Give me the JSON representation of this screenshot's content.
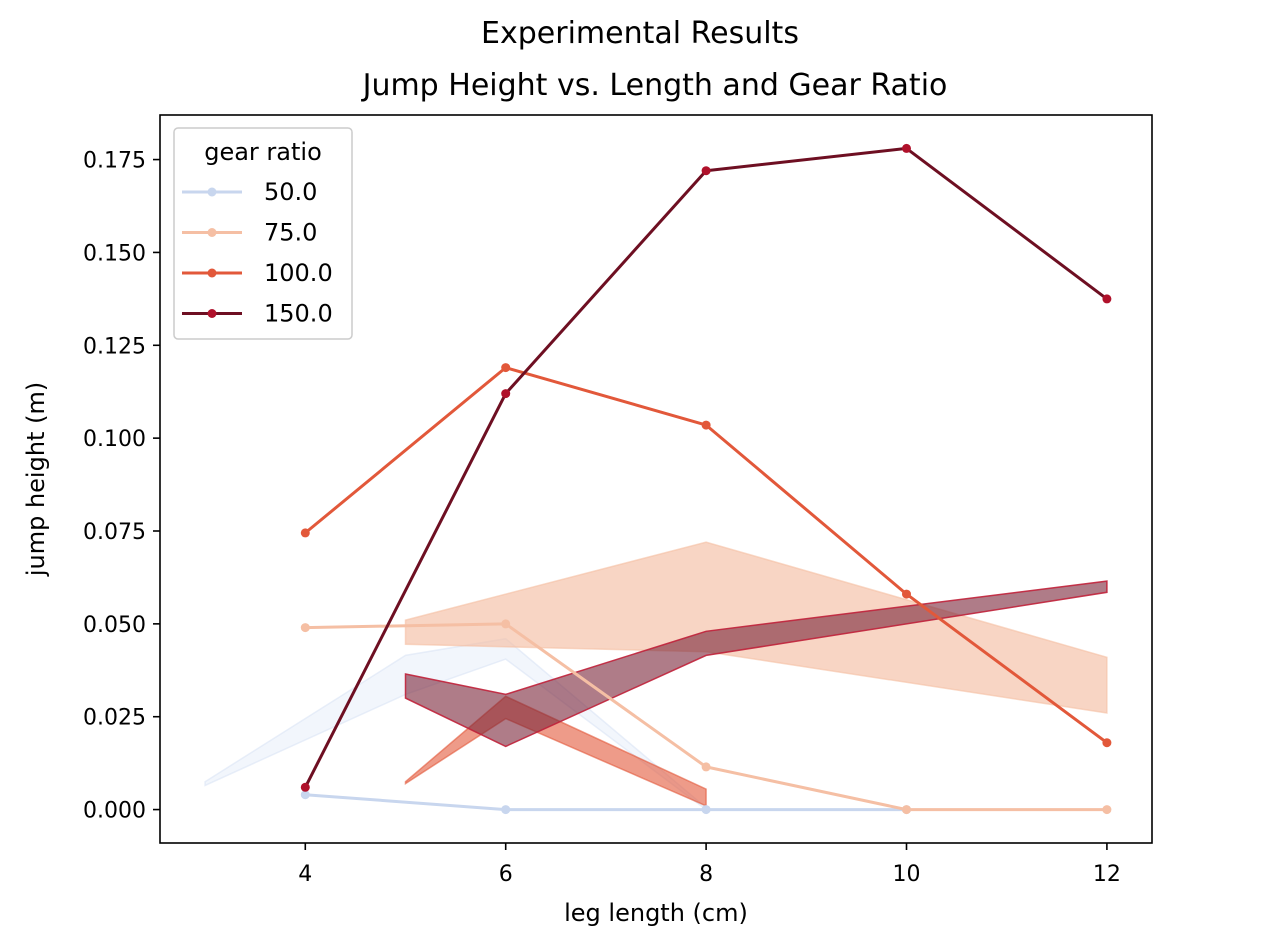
{
  "chart_data": {
    "type": "line",
    "suptitle": "Experimental Results",
    "title": "Jump Height vs. Length and Gear Ratio",
    "xlabel": "leg length (cm)",
    "ylabel": "jump height (m)",
    "xlim": [
      2.55,
      12.45
    ],
    "ylim": [
      -0.009,
      0.187
    ],
    "xticks": [
      4,
      6,
      8,
      10,
      12
    ],
    "yticks": [
      0.0,
      0.025,
      0.05,
      0.075,
      0.1,
      0.125,
      0.15,
      0.175
    ],
    "ytick_labels": [
      "0.000",
      "0.025",
      "0.050",
      "0.075",
      "0.100",
      "0.125",
      "0.150",
      "0.175"
    ],
    "grid": false,
    "legend": {
      "title": "gear ratio",
      "placement": "top-left"
    },
    "series": [
      {
        "name": "50.0",
        "color": "#c8d6ee",
        "x": [
          4,
          6,
          8,
          10
        ],
        "y": [
          0.004,
          0.0,
          0.0,
          0.0
        ]
      },
      {
        "name": "75.0",
        "color": "#f5bfa4",
        "x": [
          4,
          6,
          8,
          10,
          12
        ],
        "y": [
          0.049,
          0.05,
          0.0115,
          0.0,
          0.0
        ]
      },
      {
        "name": "100.0",
        "color": "#e2583a",
        "x": [
          4,
          6,
          8,
          10,
          12
        ],
        "y": [
          0.0745,
          0.119,
          0.1035,
          0.058,
          0.018
        ]
      },
      {
        "name": "150.0",
        "color": "#6e0f22",
        "marker_color": "#b0112b",
        "x": [
          4,
          6,
          8,
          10,
          12
        ],
        "y": [
          0.006,
          0.112,
          0.172,
          0.178,
          0.1375
        ]
      }
    ],
    "bands": [
      {
        "series": "50.0",
        "fill": "#dbe5f5",
        "fill_opacity": 0.35,
        "x": [
          3,
          5,
          6,
          8
        ],
        "lower": [
          0.0065,
          0.031,
          0.0405,
          0.0
        ],
        "upper": [
          0.0075,
          0.0415,
          0.046,
          0.0005
        ]
      },
      {
        "series": "75.0",
        "fill": "#f5bfa4",
        "fill_opacity": 0.65,
        "x": [
          5,
          8,
          12
        ],
        "lower": [
          0.0445,
          0.0425,
          0.026
        ],
        "upper": [
          0.051,
          0.072,
          0.041
        ]
      },
      {
        "series": "100.0",
        "fill": "#e2583a",
        "fill_opacity": 0.6,
        "x": [
          5,
          6,
          8
        ],
        "lower": [
          0.007,
          0.0245,
          0.001
        ],
        "upper": [
          0.0075,
          0.0305,
          0.0055
        ]
      },
      {
        "series": "150.0",
        "fill": "#7a2438",
        "fill_opacity": 0.6,
        "stroke": "#c0213a",
        "x": [
          5,
          6,
          8,
          12
        ],
        "lower": [
          0.03,
          0.017,
          0.0415,
          0.0585
        ],
        "upper": [
          0.0365,
          0.031,
          0.048,
          0.0615
        ]
      }
    ]
  }
}
